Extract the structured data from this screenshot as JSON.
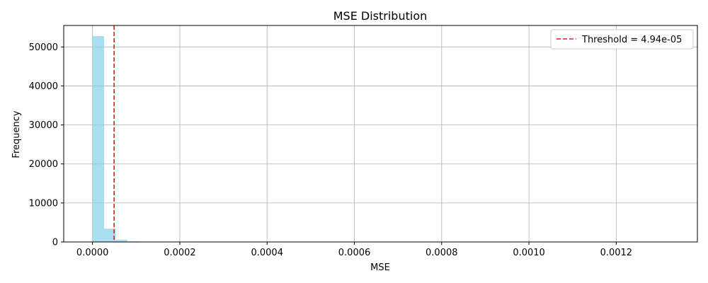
{
  "chart_data": {
    "type": "bar",
    "title": "MSE Distribution",
    "xlabel": "MSE",
    "ylabel": "Frequency",
    "xlim": [
      -6.6e-05,
      0.001386
    ],
    "ylim": [
      0,
      55500
    ],
    "x_ticks": [
      0.0,
      0.0002,
      0.0004,
      0.0006,
      0.0008,
      0.001,
      0.0012
    ],
    "x_tick_labels": [
      "0.0000",
      "0.0002",
      "0.0004",
      "0.0006",
      "0.0008",
      "0.0010",
      "0.0012"
    ],
    "y_ticks": [
      0,
      10000,
      20000,
      30000,
      40000,
      50000
    ],
    "y_tick_labels": [
      "0",
      "10000",
      "20000",
      "30000",
      "40000",
      "50000"
    ],
    "grid": true,
    "bin_width": 2.64e-05,
    "bins": [
      {
        "x0": 0.0,
        "value": 52800
      },
      {
        "x0": 2.64e-05,
        "value": 3400
      },
      {
        "x0": 5.28e-05,
        "value": 600
      },
      {
        "x0": 7.92e-05,
        "value": 150
      },
      {
        "x0": 0.0001056,
        "value": 40
      },
      {
        "x0": 0.000132,
        "value": 10
      }
    ],
    "bar_color": "#87ceeb",
    "threshold": {
      "value": 4.94e-05,
      "color": "#e41a1c",
      "label": "Threshold = 4.94e-05"
    },
    "legend_position": "upper-right"
  }
}
